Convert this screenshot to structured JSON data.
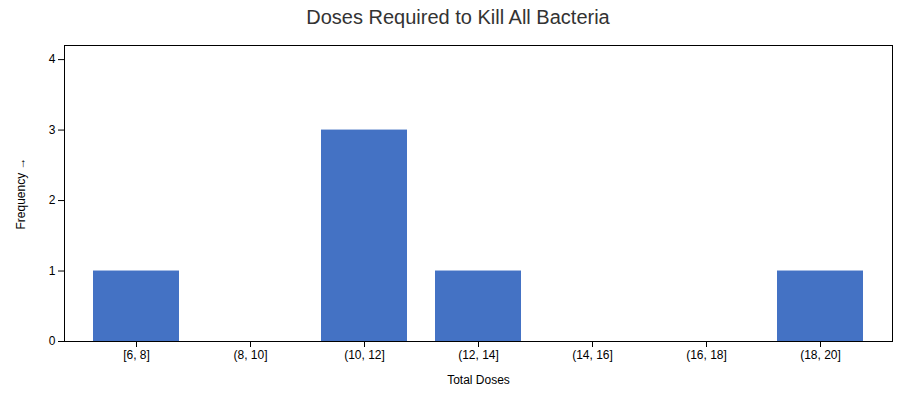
{
  "chart_data": {
    "type": "bar",
    "title": "Doses Required to Kill All Bacteria",
    "xlabel": "Total Doses",
    "ylabel": "Frequency",
    "categories": [
      "[6, 8]",
      "(8, 10]",
      "(10, 12]",
      "(12, 14]",
      "(14, 16]",
      "(16, 18]",
      "(18, 20]"
    ],
    "values": [
      1,
      0,
      3,
      1,
      0,
      0,
      1
    ],
    "color": "#4472C4",
    "ylim": [
      0,
      4.2
    ],
    "yticks": [
      0,
      1,
      2,
      3,
      4
    ],
    "grid": false
  }
}
